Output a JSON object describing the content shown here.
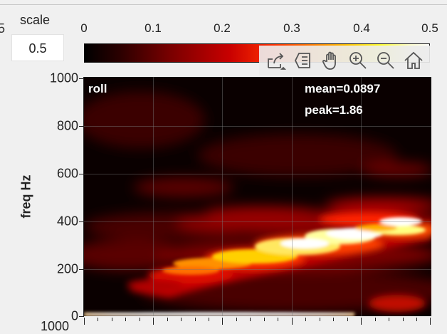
{
  "scale": {
    "label": "scale",
    "value": "0.5"
  },
  "edge_fragment": "5",
  "colorbar": {
    "ticks": [
      "0",
      "0.1",
      "0.2",
      "0.3",
      "0.4",
      "0.5"
    ]
  },
  "toolbar": {
    "icons": [
      "export-icon",
      "data-tip-icon",
      "pan-icon",
      "zoom-in-icon",
      "zoom-out-icon",
      "home-icon"
    ]
  },
  "plot": {
    "channel": "roll",
    "mean": "mean=0.0897",
    "peak": "peak=1.86",
    "ylabel": "freq Hz",
    "yticks": [
      "1000",
      "800",
      "600",
      "400",
      "200",
      "0"
    ],
    "below_axis_fragment": "1000"
  }
}
